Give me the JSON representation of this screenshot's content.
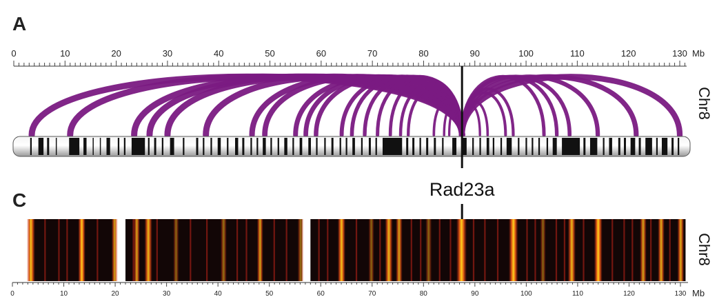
{
  "panels": {
    "a_label": "A",
    "c_label": "C"
  },
  "top_axis": {
    "unit": "Mb",
    "min": 0,
    "max": 131,
    "major_ticks": [
      0,
      10,
      20,
      30,
      40,
      50,
      60,
      70,
      80,
      90,
      100,
      110,
      120,
      130
    ]
  },
  "bottom_axis": {
    "unit": "Mb",
    "min": 0,
    "max": 131,
    "major_ticks": [
      0,
      10,
      20,
      30,
      40,
      50,
      60,
      70,
      80,
      90,
      100,
      110,
      120,
      130
    ]
  },
  "chromosome_label_top": "Chr8",
  "chromosome_label_bottom": "Chr8",
  "gene": {
    "name": "Rad23a",
    "position_mb": 87.5
  },
  "colors": {
    "arc": "#7a1a82",
    "heat_bg": "#120606",
    "heat_mid": "#c0241a",
    "heat_hot": "#ffd21e"
  },
  "chart_data": [
    {
      "type": "arc-diagram",
      "anchor_mb": 87.5,
      "xlim": [
        0,
        131
      ],
      "arcs_target_mb": [
        3.5,
        11,
        23.5,
        26.5,
        30,
        37.5,
        46.5,
        49,
        55,
        57,
        59,
        64,
        66,
        68.5,
        71,
        73.5,
        75.5,
        77,
        82,
        84,
        85,
        91,
        92.5,
        96,
        97.5,
        103.5,
        106,
        108.5,
        114,
        121.5,
        130
      ],
      "chromosome_bands_mb": [
        [
          3.2,
          3.5
        ],
        [
          4.8,
          5.8
        ],
        [
          6.5,
          6.9
        ],
        [
          8.2,
          8.4
        ],
        [
          10.8,
          12.8
        ],
        [
          13.6,
          14.2
        ],
        [
          15.4,
          15.6
        ],
        [
          16.8,
          17.0
        ],
        [
          18.1,
          18.8
        ],
        [
          20.3,
          20.6
        ],
        [
          21.5,
          21.8
        ],
        [
          23.0,
          25.6
        ],
        [
          26.2,
          26.5
        ],
        [
          27.4,
          27.8
        ],
        [
          28.9,
          29.2
        ],
        [
          30.5,
          31.3
        ],
        [
          33.0,
          33.3
        ],
        [
          35.6,
          36.0
        ],
        [
          36.9,
          37.2
        ],
        [
          38.4,
          38.7
        ],
        [
          39.8,
          40.4
        ],
        [
          41.6,
          41.9
        ],
        [
          43.2,
          43.8
        ],
        [
          44.6,
          45.0
        ],
        [
          46.2,
          46.5
        ],
        [
          47.4,
          47.7
        ],
        [
          48.6,
          49.2
        ],
        [
          50.1,
          50.4
        ],
        [
          51.5,
          51.8
        ],
        [
          52.8,
          53.4
        ],
        [
          54.4,
          54.7
        ],
        [
          55.8,
          56.3
        ],
        [
          57.5,
          58.0
        ],
        [
          59.0,
          59.3
        ],
        [
          60.6,
          60.9
        ],
        [
          62.0,
          62.4
        ],
        [
          63.6,
          63.9
        ],
        [
          64.8,
          65.1
        ],
        [
          66.1,
          66.6
        ],
        [
          67.8,
          68.1
        ],
        [
          69.3,
          69.7
        ],
        [
          70.6,
          70.9
        ],
        [
          72.0,
          75.8
        ],
        [
          76.6,
          77.0
        ],
        [
          77.8,
          78.2
        ],
        [
          79.2,
          79.5
        ],
        [
          80.5,
          80.9
        ],
        [
          82.0,
          82.4
        ],
        [
          83.6,
          83.9
        ],
        [
          85.6,
          86.4
        ],
        [
          87.6,
          88.4
        ],
        [
          89.5,
          89.8
        ],
        [
          90.9,
          91.2
        ],
        [
          92.3,
          92.8
        ],
        [
          93.5,
          93.8
        ],
        [
          95.0,
          95.3
        ],
        [
          96.2,
          97.2
        ],
        [
          98.4,
          98.7
        ],
        [
          99.9,
          100.2
        ],
        [
          101.1,
          101.4
        ],
        [
          102.4,
          102.7
        ],
        [
          104.0,
          104.3
        ],
        [
          105.2,
          106.0
        ],
        [
          107.0,
          110.5
        ],
        [
          111.2,
          111.6
        ],
        [
          112.5,
          113.9
        ],
        [
          115.0,
          115.3
        ],
        [
          116.2,
          116.8
        ],
        [
          118.0,
          118.4
        ],
        [
          119.1,
          119.5
        ],
        [
          120.4,
          121.3
        ],
        [
          122.0,
          122.4
        ],
        [
          123.3,
          124.6
        ],
        [
          125.4,
          125.7
        ],
        [
          126.5,
          127.6
        ],
        [
          128.4,
          128.8
        ],
        [
          129.6,
          129.9
        ]
      ]
    },
    {
      "type": "heatmap",
      "xlim": [
        0,
        131
      ],
      "segments_mb": [
        [
          3.2,
          20.1
        ],
        [
          22.0,
          56.4
        ],
        [
          58.0,
          131.0
        ]
      ],
      "hot_bands_mb": [
        [
          3.2,
          4.0,
          0.95
        ],
        [
          13.2,
          13.8,
          1.0
        ],
        [
          19.7,
          20.1,
          0.8
        ],
        [
          24.0,
          24.4,
          0.8
        ],
        [
          26.1,
          26.8,
          0.9
        ],
        [
          31.7,
          32.0,
          0.5
        ],
        [
          40.9,
          41.3,
          0.55
        ],
        [
          48.0,
          48.4,
          0.8
        ],
        [
          55.9,
          56.3,
          0.55
        ],
        [
          63.7,
          64.4,
          0.95
        ],
        [
          69.7,
          70.0,
          0.5
        ],
        [
          72.9,
          73.6,
          0.9
        ],
        [
          75.0,
          75.5,
          0.8
        ],
        [
          80.8,
          81.2,
          0.5
        ],
        [
          86.8,
          88.0,
          1.0
        ],
        [
          97.0,
          98.0,
          1.0
        ],
        [
          103.1,
          103.4,
          0.5
        ],
        [
          108.5,
          109.2,
          0.9
        ],
        [
          113.6,
          114.4,
          1.0
        ],
        [
          122.5,
          123.0,
          0.8
        ],
        [
          126.0,
          126.5,
          0.85
        ],
        [
          129.8,
          130.3,
          0.85
        ]
      ],
      "warm_bands_mb": [
        [
          6.2,
          6.5
        ],
        [
          8.9,
          9.2
        ],
        [
          10.5,
          10.8
        ],
        [
          16.4,
          16.7
        ],
        [
          23.4,
          23.7
        ],
        [
          28.0,
          28.3
        ],
        [
          34.5,
          34.8
        ],
        [
          37.7,
          38.0
        ],
        [
          43.6,
          43.9
        ],
        [
          45.4,
          45.7
        ],
        [
          50.8,
          51.1
        ],
        [
          53.2,
          53.5
        ],
        [
          59.5,
          59.8
        ],
        [
          61.2,
          61.5
        ],
        [
          66.8,
          67.1
        ],
        [
          71.4,
          71.7
        ],
        [
          77.5,
          77.8
        ],
        [
          79.3,
          79.6
        ],
        [
          83.0,
          83.3
        ],
        [
          85.1,
          85.4
        ],
        [
          89.6,
          89.9
        ],
        [
          91.8,
          92.1
        ],
        [
          94.3,
          94.6
        ],
        [
          100.0,
          100.3
        ],
        [
          101.6,
          101.9
        ],
        [
          105.7,
          106.0
        ],
        [
          107.3,
          107.6
        ],
        [
          111.0,
          111.3
        ],
        [
          116.6,
          116.9
        ],
        [
          118.9,
          119.2
        ],
        [
          120.5,
          120.8
        ],
        [
          124.1,
          124.4
        ],
        [
          127.8,
          128.1
        ]
      ]
    }
  ]
}
